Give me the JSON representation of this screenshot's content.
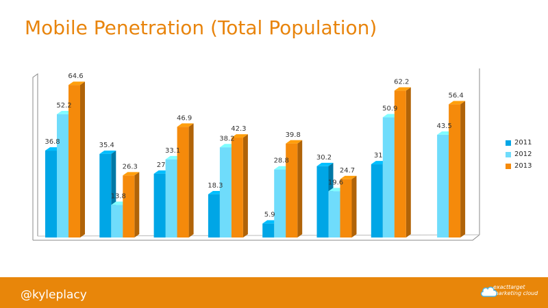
{
  "title": "Mobile Penetration (Total Population)",
  "colors": {
    "title": "#e8840c",
    "footer": "#e8860a"
  },
  "chart_data": {
    "type": "bar",
    "categories": [
      "",
      "",
      "",
      "",
      "",
      "",
      "",
      ""
    ],
    "series": [
      {
        "name": "2011",
        "color": "#00a6e6",
        "values": [
          36.8,
          35.4,
          27,
          18.3,
          5.9,
          30.2,
          31,
          null
        ]
      },
      {
        "name": "2012",
        "color": "#6fdcfb",
        "values": [
          52.2,
          13.8,
          33.1,
          38.2,
          28.8,
          19.6,
          50.9,
          43.5
        ]
      },
      {
        "name": "2013",
        "color": "#f58a0b",
        "values": [
          64.6,
          26.3,
          46.9,
          42.3,
          39.8,
          24.7,
          62.2,
          56.4
        ]
      }
    ],
    "ylim": [
      0,
      70
    ],
    "grid": false,
    "legend_position": "right",
    "three_d": true
  },
  "footer": {
    "handle": "@kyleplacy",
    "brand_line1": "exacttarget",
    "brand_line2": "marketing cloud",
    "brand_icon": "cloud-icon"
  }
}
